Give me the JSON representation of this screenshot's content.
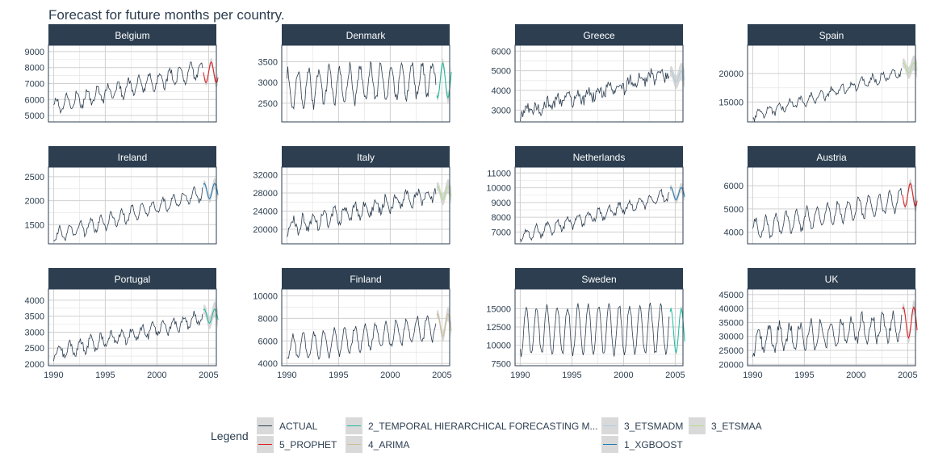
{
  "chart_data": {
    "type": "line",
    "title": "Forecast for future months per country.",
    "xlabel": "",
    "ylabel": "",
    "x_ticks": [
      "1990",
      "1995",
      "2000",
      "2005"
    ],
    "x_range": [
      1989.5,
      2005.75
    ],
    "grid": true,
    "legend": {
      "title": "Legend",
      "position": "bottom",
      "items": [
        {
          "label": "ACTUAL",
          "color": "#2c3e50"
        },
        {
          "label": "5_PROPHET",
          "color": "#e31a1c"
        },
        {
          "label": "2_TEMPORAL HIERARCHICAL FORECASTING M...",
          "color": "#18bc9c"
        },
        {
          "label": "4_ARIMA",
          "color": "#ccbe93"
        },
        {
          "label": "3_ETSMADM",
          "color": "#a6cee3"
        },
        {
          "label": "1_XGBOOST",
          "color": "#1f78b4"
        },
        {
          "label": "3_ETSMAA",
          "color": "#b2df8a"
        }
      ]
    },
    "panels": [
      {
        "name": "Belgium",
        "y_ticks": [
          5000,
          6000,
          7000,
          8000,
          9000
        ],
        "ylim": [
          4600,
          9400
        ],
        "start": 5600,
        "end": 7900,
        "amp": 500,
        "noise": 220,
        "model": "5_PROPHET",
        "f_mean": 7700,
        "f_amp": 650,
        "f_band": 350,
        "min_month": 9,
        "peak_month": 3
      },
      {
        "name": "Denmark",
        "y_ticks": [
          2500,
          3000,
          3500
        ],
        "ylim": [
          2050,
          3900
        ],
        "start": 2850,
        "end": 3100,
        "amp": 420,
        "noise": 130,
        "model": "2_TEMPORAL HIERARCHICAL FORECASTING M...",
        "f_mean": 3050,
        "f_amp": 420,
        "f_band": 160,
        "min_month": 7,
        "peak_month": 1
      },
      {
        "name": "Greece",
        "y_ticks": [
          3000,
          4000,
          5000,
          6000
        ],
        "ylim": [
          2400,
          6300
        ],
        "start": 2850,
        "end": 4900,
        "amp": 230,
        "noise": 300,
        "model": "3_ETSMADM",
        "f_mean": 4700,
        "f_amp": 280,
        "f_band": 500,
        "min_month": 1,
        "peak_month": 7
      },
      {
        "name": "Spain",
        "y_ticks": [
          15000,
          20000
        ],
        "ylim": [
          11500,
          25000
        ],
        "start": 12600,
        "end": 20300,
        "amp": 800,
        "noise": 500,
        "model": "3_ETSMAA",
        "f_mean": 21000,
        "f_amp": 900,
        "f_band": 1500,
        "min_month": 1,
        "peak_month": 7
      },
      {
        "name": "Ireland",
        "y_ticks": [
          1500,
          2000,
          2500
        ],
        "ylim": [
          1100,
          2700
        ],
        "start": 1250,
        "end": 2150,
        "amp": 150,
        "noise": 60,
        "model": "1_XGBOOST",
        "f_mean": 2200,
        "f_amp": 160,
        "f_band": 130,
        "min_month": 1,
        "peak_month": 7
      },
      {
        "name": "Italy",
        "y_ticks": [
          20000,
          24000,
          28000,
          32000
        ],
        "ylim": [
          16800,
          33700
        ],
        "start": 20500,
        "end": 28000,
        "amp": 1500,
        "noise": 1100,
        "model": "3_ETSMAA",
        "f_mean": 28000,
        "f_amp": 1500,
        "f_band": 1800,
        "min_month": 1,
        "peak_month": 7
      },
      {
        "name": "Netherlands",
        "y_ticks": [
          7000,
          8000,
          9000,
          10000,
          11000
        ],
        "ylim": [
          6200,
          11400
        ],
        "start": 6700,
        "end": 9500,
        "amp": 380,
        "noise": 200,
        "model": "1_XGBOOST",
        "f_mean": 9600,
        "f_amp": 420,
        "f_band": 380,
        "min_month": 1,
        "peak_month": 7
      },
      {
        "name": "Austria",
        "y_ticks": [
          4000,
          5000,
          6000
        ],
        "ylim": [
          3500,
          6800
        ],
        "start": 4100,
        "end": 5400,
        "amp": 450,
        "noise": 120,
        "model": "5_PROPHET",
        "f_mean": 5600,
        "f_amp": 500,
        "f_band": 250,
        "min_month": 9,
        "peak_month": 3
      },
      {
        "name": "Portugal",
        "y_ticks": [
          2000,
          2500,
          3000,
          3500,
          4000
        ],
        "ylim": [
          1950,
          4350
        ],
        "start": 2350,
        "end": 3450,
        "amp": 200,
        "noise": 110,
        "model": "2_TEMPORAL HIERARCHICAL FORECASTING M...",
        "f_mean": 3500,
        "f_amp": 220,
        "f_band": 280,
        "min_month": 1,
        "peak_month": 7
      },
      {
        "name": "Finland",
        "y_ticks": [
          4000,
          6000,
          8000,
          10000
        ],
        "ylim": [
          3800,
          10600
        ],
        "start": 5300,
        "end": 7200,
        "amp": 1100,
        "noise": 300,
        "model": "4_ARIMA",
        "f_mean": 7400,
        "f_amp": 1000,
        "f_band": 700,
        "min_month": 1,
        "peak_month": 7
      },
      {
        "name": "Sweden",
        "y_ticks": [
          7500,
          10000,
          12500,
          15000
        ],
        "ylim": [
          7200,
          17700
        ],
        "start": 12000,
        "end": 12200,
        "amp": 3300,
        "noise": 400,
        "model": "2_TEMPORAL HIERARCHICAL FORECASTING M...",
        "f_mean": 12000,
        "f_amp": 3000,
        "f_band": 500,
        "min_month": 1,
        "peak_month": 7
      },
      {
        "name": "UK",
        "y_ticks": [
          20000,
          25000,
          30000,
          35000,
          40000,
          45000
        ],
        "ylim": [
          19500,
          47000
        ],
        "start": 28500,
        "end": 34000,
        "amp": 4500,
        "noise": 2000,
        "model": "5_PROPHET",
        "f_mean": 35000,
        "f_amp": 5500,
        "f_band": 3000,
        "min_month": 1,
        "peak_month": 7
      }
    ]
  }
}
